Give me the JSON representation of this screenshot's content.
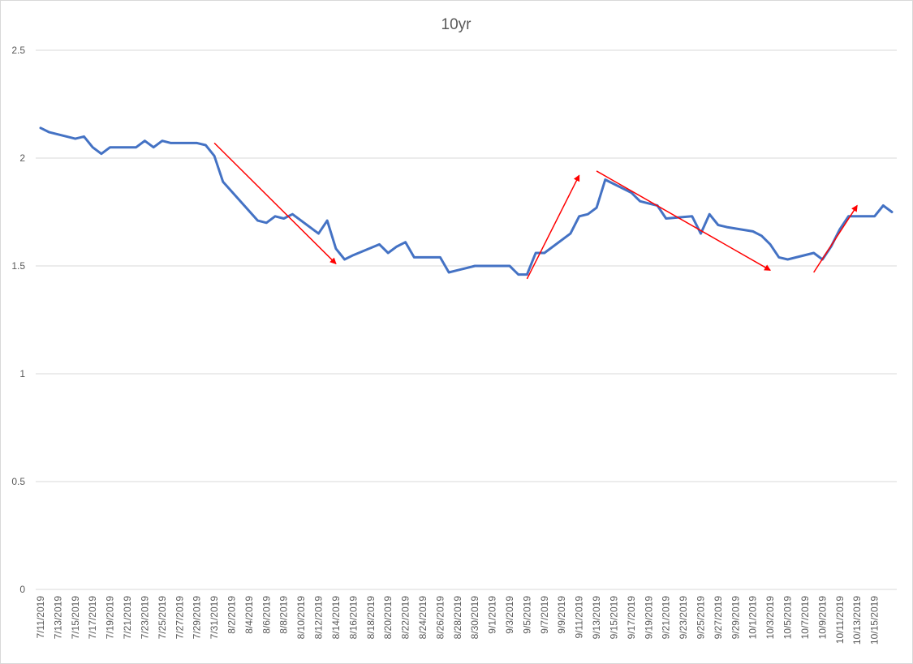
{
  "chart_data": {
    "type": "line",
    "title": "10yr",
    "xlabel": "",
    "ylabel": "",
    "ylim": [
      0,
      2.5
    ],
    "y_ticks": [
      "0",
      "0.5",
      "1",
      "1.5",
      "2",
      "2.5"
    ],
    "grid": true,
    "x_tick_labels": [
      "7/11/2019",
      "7/13/2019",
      "7/15/2019",
      "7/17/2019",
      "7/19/2019",
      "7/21/2019",
      "7/23/2019",
      "7/25/2019",
      "7/27/2019",
      "7/29/2019",
      "7/31/2019",
      "8/2/2019",
      "8/4/2019",
      "8/6/2019",
      "8/8/2019",
      "8/10/2019",
      "8/12/2019",
      "8/14/2019",
      "8/16/2019",
      "8/18/2019",
      "8/20/2019",
      "8/22/2019",
      "8/24/2019",
      "8/26/2019",
      "8/28/2019",
      "8/30/2019",
      "9/1/2019",
      "9/3/2019",
      "9/5/2019",
      "9/7/2019",
      "9/9/2019",
      "9/11/2019",
      "9/13/2019",
      "9/15/2019",
      "9/17/2019",
      "9/19/2019",
      "9/21/2019",
      "9/23/2019",
      "9/25/2019",
      "9/27/2019",
      "9/29/2019",
      "10/1/2019",
      "10/3/2019",
      "10/5/2019",
      "10/7/2019",
      "10/9/2019",
      "10/11/2019",
      "10/13/2019",
      "10/15/2019"
    ],
    "series": [
      {
        "color": "#4472c4",
        "points": [
          [
            "7/11/2019",
            2.14
          ],
          [
            "7/12/2019",
            2.12
          ],
          [
            "7/15/2019",
            2.09
          ],
          [
            "7/16/2019",
            2.1
          ],
          [
            "7/17/2019",
            2.05
          ],
          [
            "7/18/2019",
            2.02
          ],
          [
            "7/19/2019",
            2.05
          ],
          [
            "7/22/2019",
            2.05
          ],
          [
            "7/23/2019",
            2.08
          ],
          [
            "7/24/2019",
            2.05
          ],
          [
            "7/25/2019",
            2.08
          ],
          [
            "7/26/2019",
            2.07
          ],
          [
            "7/29/2019",
            2.07
          ],
          [
            "7/30/2019",
            2.06
          ],
          [
            "7/31/2019",
            2.01
          ],
          [
            "8/1/2019",
            1.89
          ],
          [
            "8/5/2019",
            1.71
          ],
          [
            "8/6/2019",
            1.7
          ],
          [
            "8/7/2019",
            1.73
          ],
          [
            "8/8/2019",
            1.72
          ],
          [
            "8/9/2019",
            1.74
          ],
          [
            "8/12/2019",
            1.65
          ],
          [
            "8/13/2019",
            1.71
          ],
          [
            "8/14/2019",
            1.58
          ],
          [
            "8/15/2019",
            1.53
          ],
          [
            "8/16/2019",
            1.55
          ],
          [
            "8/19/2019",
            1.6
          ],
          [
            "8/20/2019",
            1.56
          ],
          [
            "8/21/2019",
            1.59
          ],
          [
            "8/22/2019",
            1.61
          ],
          [
            "8/23/2019",
            1.54
          ],
          [
            "8/26/2019",
            1.54
          ],
          [
            "8/27/2019",
            1.47
          ],
          [
            "8/28/2019",
            1.48
          ],
          [
            "8/29/2019",
            1.49
          ],
          [
            "8/30/2019",
            1.5
          ],
          [
            "9/3/2019",
            1.5
          ],
          [
            "9/4/2019",
            1.46
          ],
          [
            "9/5/2019",
            1.46
          ],
          [
            "9/6/2019",
            1.56
          ],
          [
            "9/7/2019",
            1.56
          ],
          [
            "9/10/2019",
            1.65
          ],
          [
            "9/11/2019",
            1.73
          ],
          [
            "9/12/2019",
            1.74
          ],
          [
            "9/13/2019",
            1.77
          ],
          [
            "9/14/2019",
            1.9
          ],
          [
            "9/17/2019",
            1.84
          ],
          [
            "9/18/2019",
            1.8
          ],
          [
            "9/19/2019",
            1.79
          ],
          [
            "9/20/2019",
            1.78
          ],
          [
            "9/21/2019",
            1.72
          ],
          [
            "9/24/2019",
            1.73
          ],
          [
            "9/25/2019",
            1.65
          ],
          [
            "9/26/2019",
            1.74
          ],
          [
            "9/27/2019",
            1.69
          ],
          [
            "9/28/2019",
            1.68
          ],
          [
            "10/1/2019",
            1.66
          ],
          [
            "10/2/2019",
            1.64
          ],
          [
            "10/3/2019",
            1.6
          ],
          [
            "10/4/2019",
            1.54
          ],
          [
            "10/5/2019",
            1.53
          ],
          [
            "10/8/2019",
            1.56
          ],
          [
            "10/9/2019",
            1.53
          ],
          [
            "10/10/2019",
            1.59
          ],
          [
            "10/11/2019",
            1.67
          ],
          [
            "10/12/2019",
            1.73
          ],
          [
            "10/15/2019",
            1.73
          ],
          [
            "10/16/2019",
            1.78
          ],
          [
            "10/17/2019",
            1.75
          ]
        ]
      }
    ],
    "annotations": [
      {
        "type": "arrow",
        "color": "#ff0000",
        "from": [
          "7/31/2019",
          2.07
        ],
        "to": [
          "8/14/2019",
          1.51
        ]
      },
      {
        "type": "arrow",
        "color": "#ff0000",
        "from": [
          "9/5/2019",
          1.44
        ],
        "to": [
          "9/11/2019",
          1.92
        ]
      },
      {
        "type": "arrow",
        "color": "#ff0000",
        "from": [
          "9/13/2019",
          1.94
        ],
        "to": [
          "10/3/2019",
          1.48
        ]
      },
      {
        "type": "arrow",
        "color": "#ff0000",
        "from": [
          "10/8/2019",
          1.47
        ],
        "to": [
          "10/13/2019",
          1.78
        ]
      }
    ]
  }
}
